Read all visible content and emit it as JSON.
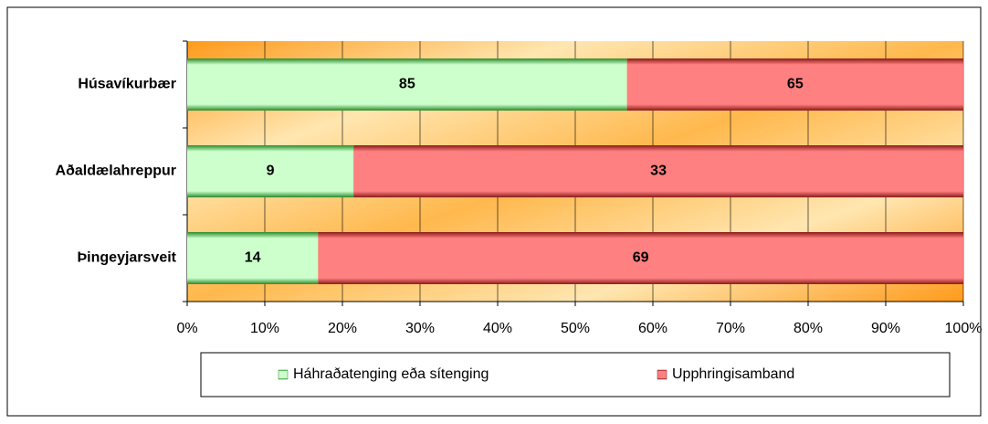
{
  "chart_data": {
    "type": "bar",
    "orientation": "horizontal",
    "stacking": "percent",
    "categories": [
      "Húsavíkurbær",
      "Aðaldælahreppur",
      "Þingeyjarsveit"
    ],
    "series": [
      {
        "name": "Háhraðatenging eða sítenging",
        "color": "#ccffcc",
        "edge": "#2a8a2a",
        "values": [
          85,
          9,
          14
        ]
      },
      {
        "name": "Upphringisamband",
        "color": "#ff8080",
        "edge": "#8b1a1a",
        "values": [
          65,
          33,
          69
        ]
      }
    ],
    "xlim": [
      0,
      100
    ],
    "xticks": [
      {
        "value": 0,
        "label": "0%"
      },
      {
        "value": 10,
        "label": "10%"
      },
      {
        "value": 20,
        "label": "20%"
      },
      {
        "value": 30,
        "label": "30%"
      },
      {
        "value": 40,
        "label": "40%"
      },
      {
        "value": 50,
        "label": "50%"
      },
      {
        "value": 60,
        "label": "60%"
      },
      {
        "value": 70,
        "label": "70%"
      },
      {
        "value": 80,
        "label": "80%"
      },
      {
        "value": 90,
        "label": "90%"
      },
      {
        "value": 100,
        "label": "100%"
      }
    ],
    "grid": true,
    "legend": "bottom"
  }
}
